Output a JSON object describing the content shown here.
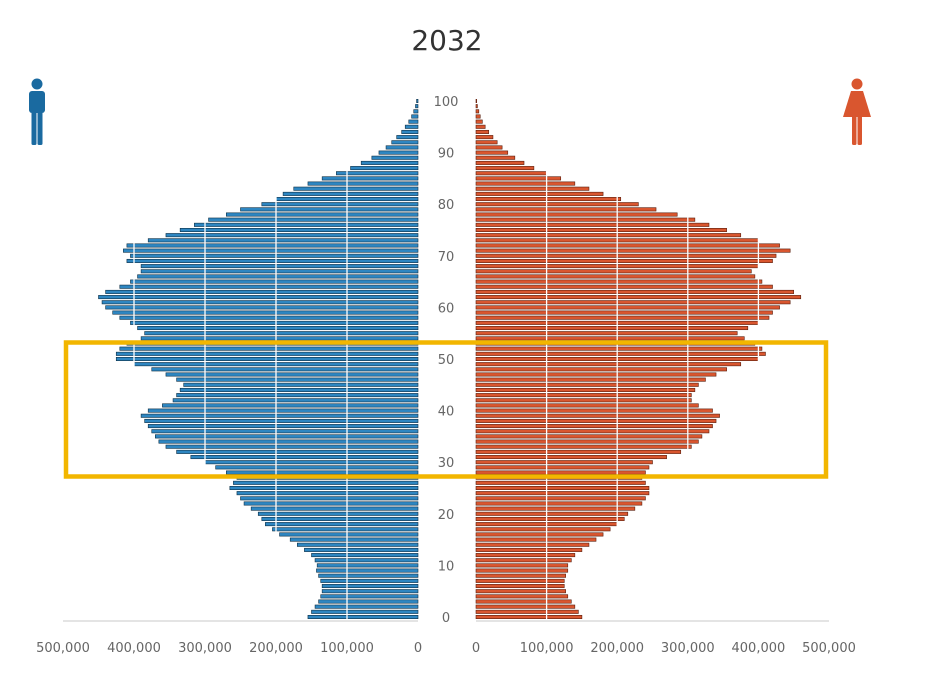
{
  "chart_data": {
    "type": "bar",
    "subtype": "population-pyramid",
    "title": "2032",
    "age_tick_labels": [
      "0",
      "10",
      "20",
      "30",
      "40",
      "50",
      "60",
      "70",
      "80",
      "90",
      "100"
    ],
    "x_tick_labels": [
      "500,000",
      "400,000",
      "300,000",
      "200,000",
      "100,000",
      "0",
      "0",
      "100,000",
      "200,000",
      "300,000",
      "400,000",
      "500,000"
    ],
    "xlim": [
      0,
      500000
    ],
    "ages": [
      0,
      1,
      2,
      3,
      4,
      5,
      6,
      7,
      8,
      9,
      10,
      11,
      12,
      13,
      14,
      15,
      16,
      17,
      18,
      19,
      20,
      21,
      22,
      23,
      24,
      25,
      26,
      27,
      28,
      29,
      30,
      31,
      32,
      33,
      34,
      35,
      36,
      37,
      38,
      39,
      40,
      41,
      42,
      43,
      44,
      45,
      46,
      47,
      48,
      49,
      50,
      51,
      52,
      53,
      54,
      55,
      56,
      57,
      58,
      59,
      60,
      61,
      62,
      63,
      64,
      65,
      66,
      67,
      68,
      69,
      70,
      71,
      72,
      73,
      74,
      75,
      76,
      77,
      78,
      79,
      80,
      81,
      82,
      83,
      84,
      85,
      86,
      87,
      88,
      89,
      90,
      91,
      92,
      93,
      94,
      95,
      96,
      97,
      98,
      99,
      100
    ],
    "series": [
      {
        "side": "left",
        "color": "#2e86c1",
        "values": [
          155000,
          150000,
          145000,
          140000,
          137000,
          135000,
          135000,
          137000,
          140000,
          143000,
          142000,
          145000,
          150000,
          160000,
          170000,
          180000,
          195000,
          205000,
          215000,
          220000,
          225000,
          235000,
          245000,
          250000,
          255000,
          265000,
          260000,
          255000,
          270000,
          285000,
          300000,
          320000,
          340000,
          355000,
          365000,
          370000,
          375000,
          380000,
          385000,
          390000,
          380000,
          360000,
          345000,
          340000,
          335000,
          330000,
          340000,
          355000,
          375000,
          400000,
          425000,
          425000,
          420000,
          410000,
          390000,
          385000,
          395000,
          405000,
          420000,
          430000,
          440000,
          445000,
          450000,
          440000,
          420000,
          405000,
          395000,
          390000,
          390000,
          410000,
          405000,
          415000,
          410000,
          380000,
          355000,
          335000,
          315000,
          295000,
          270000,
          250000,
          220000,
          200000,
          190000,
          175000,
          155000,
          135000,
          115000,
          95000,
          80000,
          65000,
          55000,
          45000,
          37000,
          30000,
          23000,
          18000,
          13000,
          9000,
          6000,
          3500,
          2000
        ]
      },
      {
        "side": "right",
        "color": "#d9562f",
        "values": [
          150000,
          145000,
          140000,
          135000,
          130000,
          127000,
          125000,
          125000,
          127000,
          130000,
          130000,
          135000,
          140000,
          150000,
          160000,
          170000,
          180000,
          190000,
          200000,
          210000,
          215000,
          225000,
          235000,
          240000,
          245000,
          245000,
          240000,
          235000,
          240000,
          245000,
          250000,
          270000,
          290000,
          305000,
          315000,
          320000,
          330000,
          335000,
          340000,
          345000,
          335000,
          315000,
          305000,
          305000,
          310000,
          315000,
          325000,
          340000,
          355000,
          375000,
          400000,
          410000,
          405000,
          395000,
          380000,
          370000,
          385000,
          400000,
          415000,
          420000,
          430000,
          445000,
          460000,
          450000,
          420000,
          405000,
          395000,
          390000,
          400000,
          420000,
          425000,
          445000,
          430000,
          400000,
          375000,
          355000,
          330000,
          310000,
          285000,
          255000,
          230000,
          205000,
          180000,
          160000,
          140000,
          120000,
          100000,
          82000,
          68000,
          55000,
          45000,
          37000,
          30000,
          24000,
          18000,
          13000,
          9000,
          6000,
          4000,
          2000,
          1000
        ]
      }
    ],
    "legend_icons": [
      {
        "name": "male-icon",
        "color": "#1a6aa0"
      },
      {
        "name": "female-icon",
        "color": "#d9562f"
      }
    ],
    "highlight": {
      "age_from": 28,
      "age_to": 53,
      "color": "#f2b600"
    }
  }
}
